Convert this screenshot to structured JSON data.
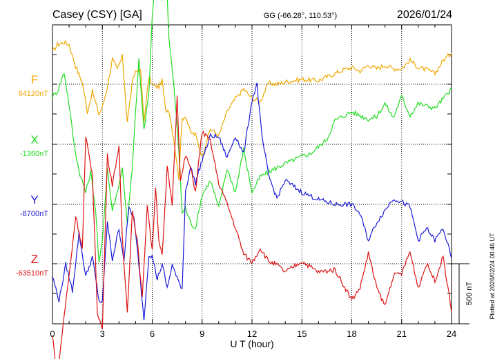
{
  "header": {
    "station": "Casey (CSY)  [GA]",
    "coords": "GG (-66.28°, 110.53°)",
    "date": "2026/01/24"
  },
  "footer": {
    "plotted": "Plotted at 2026/02/24 00:46 UT",
    "scale_label": "500 nT"
  },
  "chart_data": {
    "type": "line",
    "xlabel": "U T (hour)",
    "xlim": [
      0,
      24
    ],
    "xticks": [
      "0",
      "3",
      "6",
      "9",
      "12",
      "15",
      "18",
      "21",
      "24"
    ],
    "scale_bar_nT": 500,
    "series": [
      {
        "name": "F",
        "baseline_label": "64120nT",
        "baseline": 64120,
        "color": "#f0a800",
        "x": [
          0,
          0.3,
          0.7,
          1.0,
          1.4,
          1.8,
          2.1,
          2.4,
          2.8,
          3.0,
          3.3,
          3.6,
          3.9,
          4.2,
          4.5,
          4.8,
          5.0,
          5.3,
          5.5,
          5.8,
          6.0,
          6.2,
          6.4,
          6.6,
          6.8,
          7.0,
          7.3,
          7.6,
          7.8,
          8.0,
          8.3,
          8.6,
          9.0,
          9.5,
          10.0,
          10.5,
          11.0,
          11.5,
          12.0,
          12.5,
          13.0,
          13.5,
          14.0,
          15.0,
          16.0,
          17.0,
          17.5,
          18.0,
          18.5,
          19.0,
          19.5,
          20.0,
          20.5,
          21.0,
          21.5,
          22.0,
          22.5,
          23.0,
          23.5,
          24.0
        ],
        "y": [
          270,
          330,
          350,
          330,
          150,
          10,
          -230,
          -60,
          -250,
          -190,
          -20,
          210,
          120,
          230,
          -310,
          10,
          110,
          120,
          -310,
          60,
          0,
          -20,
          -20,
          30,
          -220,
          -210,
          -460,
          -780,
          -290,
          -260,
          -400,
          -420,
          -600,
          -370,
          -430,
          -230,
          -120,
          -40,
          -120,
          -140,
          10,
          0,
          20,
          40,
          30,
          90,
          120,
          140,
          110,
          160,
          130,
          160,
          130,
          130,
          200,
          140,
          120,
          90,
          200,
          260
        ]
      },
      {
        "name": "X",
        "baseline_label": "-1360nT",
        "baseline": -1360,
        "color": "#22dd22",
        "x": [
          0,
          0.3,
          0.7,
          1.0,
          1.3,
          1.6,
          2.0,
          2.3,
          2.6,
          2.8,
          3.0,
          3.3,
          3.6,
          3.9,
          4.2,
          4.5,
          4.8,
          5.0,
          5.2,
          5.5,
          5.8,
          6.0,
          6.3,
          6.6,
          6.8,
          7.0,
          7.3,
          7.6,
          7.8,
          8.0,
          8.3,
          8.6,
          9.0,
          9.5,
          10.0,
          10.5,
          11.0,
          11.5,
          12.0,
          12.5,
          13.0,
          14.0,
          15.0,
          15.5,
          16.0,
          16.5,
          17.0,
          18.0,
          19.0,
          19.5,
          20.0,
          20.5,
          21.0,
          21.5,
          22.0,
          23.0,
          23.5,
          24.0
        ],
        "y": [
          400,
          440,
          600,
          330,
          0,
          -220,
          -400,
          -230,
          -550,
          -1000,
          -800,
          -200,
          -550,
          -400,
          -200,
          -650,
          -200,
          270,
          700,
          120,
          420,
          1080,
          1500,
          1200,
          1600,
          880,
          500,
          -50,
          -570,
          -530,
          -650,
          -700,
          -420,
          -300,
          -530,
          -200,
          -400,
          -40,
          -400,
          -270,
          -230,
          -160,
          -100,
          -80,
          -20,
          40,
          200,
          270,
          210,
          230,
          340,
          220,
          400,
          240,
          340,
          300,
          380,
          460
        ]
      },
      {
        "name": "Y",
        "baseline_label": "-8700nT",
        "baseline": -8700,
        "color": "#1a1ad8",
        "x": [
          0,
          0.4,
          0.8,
          1.2,
          1.6,
          2.0,
          2.4,
          2.8,
          3.0,
          3.3,
          3.6,
          4.0,
          4.3,
          4.6,
          4.9,
          5.2,
          5.5,
          5.8,
          6.0,
          6.3,
          6.6,
          6.9,
          7.2,
          7.5,
          7.8,
          8.0,
          8.3,
          8.6,
          9.0,
          9.5,
          10.0,
          10.5,
          11.0,
          11.5,
          12.0,
          12.3,
          12.6,
          13.0,
          13.5,
          14.0,
          15.0,
          16.0,
          17.0,
          18.0,
          18.5,
          19.0,
          19.5,
          20.0,
          20.5,
          21.0,
          21.5,
          22.0,
          22.5,
          23.0,
          23.5,
          24.0
        ],
        "y": [
          -600,
          -800,
          -500,
          -720,
          -240,
          -600,
          -440,
          -800,
          -820,
          -150,
          -460,
          -200,
          -460,
          -20,
          -120,
          -500,
          -960,
          -420,
          -430,
          -620,
          -500,
          -700,
          -500,
          -620,
          -700,
          110,
          310,
          180,
          370,
          570,
          560,
          390,
          570,
          420,
          870,
          1000,
          560,
          240,
          50,
          200,
          100,
          40,
          0,
          0,
          -80,
          -300,
          -150,
          -50,
          50,
          20,
          -20,
          -300,
          -200,
          -300,
          -200,
          -450
        ]
      },
      {
        "name": "Z",
        "baseline_label": "-63510nT",
        "baseline": -63510,
        "color": "#dd1111",
        "x": [
          0,
          0.3,
          0.7,
          1.0,
          1.4,
          1.8,
          2.0,
          2.4,
          2.7,
          3.0,
          3.3,
          3.6,
          4.0,
          4.2,
          4.5,
          4.8,
          5.1,
          5.4,
          5.7,
          6.0,
          6.2,
          6.4,
          6.6,
          6.9,
          7.2,
          7.5,
          7.7,
          8.0,
          8.3,
          8.6,
          9.0,
          9.5,
          10.0,
          10.5,
          11.0,
          11.5,
          12.0,
          12.5,
          13.0,
          13.5,
          14.0,
          15.0,
          16.0,
          17.0,
          18.0,
          18.5,
          19.0,
          19.5,
          20.0,
          20.5,
          21.0,
          21.5,
          22.0,
          22.5,
          23.0,
          23.5,
          24.0
        ],
        "y": [
          -600,
          -950,
          -430,
          -100,
          400,
          130,
          1050,
          750,
          -400,
          -550,
          900,
          660,
          980,
          200,
          -400,
          440,
          200,
          -290,
          500,
          100,
          650,
          200,
          60,
          800,
          500,
          1400,
          680,
          900,
          800,
          600,
          1100,
          1020,
          670,
          500,
          300,
          80,
          10,
          130,
          20,
          -10,
          -70,
          20,
          -70,
          -50,
          -300,
          -200,
          90,
          -200,
          -350,
          -100,
          -80,
          100,
          -200,
          0,
          -140,
          60,
          -400
        ]
      }
    ]
  }
}
